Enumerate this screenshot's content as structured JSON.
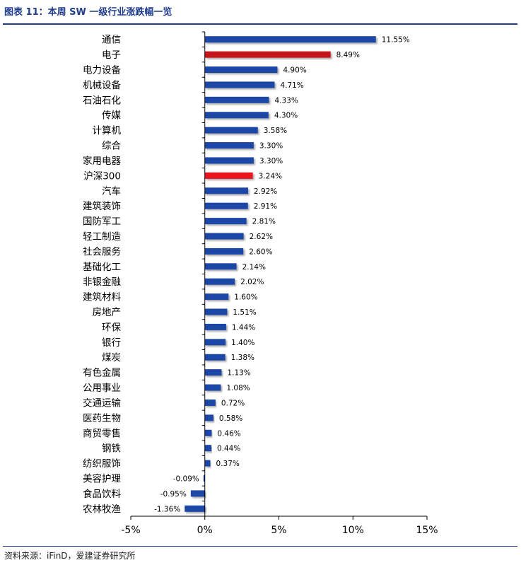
{
  "header": {
    "title": "图表 11：本周 SW 一级行业涨跌幅一览"
  },
  "footer": {
    "source": "资料来源：iFinD，爱建证券研究所"
  },
  "chart_data": {
    "type": "bar",
    "orientation": "horizontal",
    "title": "",
    "xlabel": "",
    "ylabel": "",
    "xlim": [
      -5,
      15
    ],
    "xticks": [
      -5,
      0,
      5,
      10,
      15
    ],
    "xtick_labels": [
      "-5%",
      "0%",
      "5%",
      "10%",
      "15%"
    ],
    "grid": false,
    "legend": "none",
    "categories": [
      "通信",
      "电子",
      "电力设备",
      "机械设备",
      "石油石化",
      "传媒",
      "计算机",
      "综合",
      "家用电器",
      "沪深300",
      "汽车",
      "建筑装饰",
      "国防军工",
      "轻工制造",
      "社会服务",
      "基础化工",
      "非银金融",
      "建筑材料",
      "房地产",
      "环保",
      "银行",
      "煤炭",
      "有色金属",
      "公用事业",
      "交通运输",
      "医药生物",
      "商贸零售",
      "钢铁",
      "纺织服饰",
      "美容护理",
      "食品饮料",
      "农林牧渔"
    ],
    "values": [
      11.55,
      8.49,
      4.9,
      4.71,
      4.33,
      4.3,
      3.58,
      3.3,
      3.3,
      3.24,
      2.92,
      2.91,
      2.81,
      2.62,
      2.6,
      2.14,
      2.02,
      1.6,
      1.51,
      1.44,
      1.4,
      1.38,
      1.13,
      1.08,
      0.72,
      0.58,
      0.46,
      0.44,
      0.37,
      -0.09,
      -0.95,
      -1.36
    ],
    "value_labels": [
      "11.55%",
      "8.49%",
      "4.90%",
      "4.71%",
      "4.33%",
      "4.30%",
      "3.58%",
      "3.30%",
      "3.30%",
      "3.24%",
      "2.92%",
      "2.91%",
      "2.81%",
      "2.62%",
      "2.60%",
      "2.14%",
      "2.02%",
      "1.60%",
      "1.51%",
      "1.44%",
      "1.40%",
      "1.38%",
      "1.13%",
      "1.08%",
      "0.72%",
      "0.58%",
      "0.46%",
      "0.44%",
      "0.37%",
      "-0.09%",
      "-0.95%",
      "-1.36%"
    ],
    "colors": {
      "default": "#1c46a6",
      "electronics": "#c4161c",
      "index": "#e8141b"
    },
    "highlight": {
      "电子": "electronics",
      "沪深300": "index"
    }
  }
}
